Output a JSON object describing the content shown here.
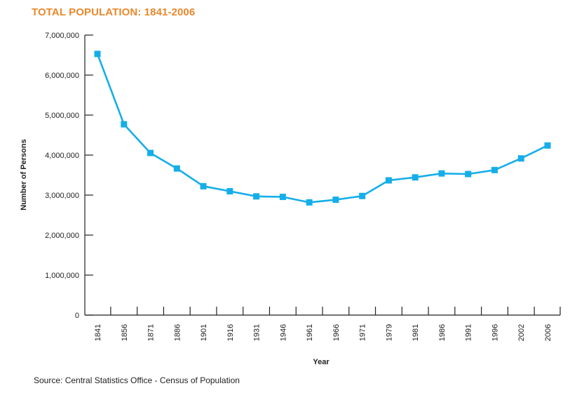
{
  "title": "TOTAL POPULATION: 1841-2006",
  "source": "Source: Central Statistics Office - Census of Population",
  "colors": {
    "title": "#e8892c",
    "series": "#15aee8",
    "axis": "#222222"
  },
  "chart_data": {
    "type": "line",
    "title": "TOTAL POPULATION: 1841-2006",
    "xlabel": "Year",
    "ylabel": "Number of Persons",
    "ylim": [
      0,
      7000000
    ],
    "yticks": [
      0,
      1000000,
      2000000,
      3000000,
      4000000,
      5000000,
      6000000,
      7000000
    ],
    "ytick_labels": [
      "0",
      "1,000,000",
      "2,000,000",
      "3,000,000",
      "4,000,000",
      "5,000,000",
      "6,000,000",
      "7,000,000"
    ],
    "grid": false,
    "categories": [
      "1841",
      "1856",
      "1871",
      "1886",
      "1901",
      "1916",
      "1931",
      "1946",
      "1961",
      "1966",
      "1971",
      "1979",
      "1981",
      "1986",
      "1991",
      "1996",
      "2002",
      "2006"
    ],
    "series": [
      {
        "values": [
          6529000,
          4770000,
          4053000,
          3665000,
          3222000,
          3096000,
          2968000,
          2955000,
          2818000,
          2884000,
          2978000,
          3368000,
          3443000,
          3541000,
          3526000,
          3626000,
          3917000,
          4240000
        ]
      }
    ]
  }
}
